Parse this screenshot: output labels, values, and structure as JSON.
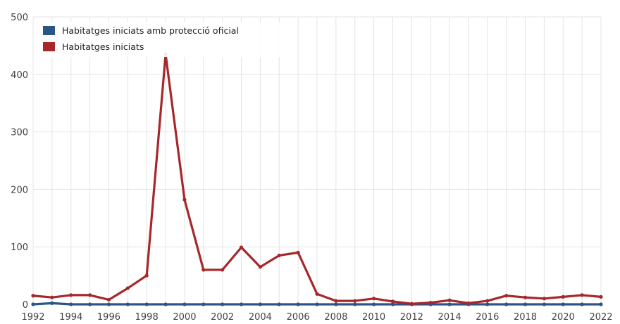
{
  "chart_data": {
    "type": "line",
    "title": "",
    "xlabel": "",
    "ylabel": "",
    "x": [
      1992,
      1993,
      1994,
      1995,
      1996,
      1997,
      1998,
      1999,
      2000,
      2001,
      2002,
      2003,
      2004,
      2005,
      2006,
      2007,
      2008,
      2009,
      2010,
      2011,
      2012,
      2013,
      2014,
      2015,
      2016,
      2017,
      2018,
      2019,
      2020,
      2021,
      2022
    ],
    "xlim": [
      1992,
      2022
    ],
    "ylim": [
      0,
      500
    ],
    "x_ticks": [
      "1992",
      "1994",
      "1996",
      "1998",
      "2000",
      "2002",
      "2004",
      "2006",
      "2008",
      "2010",
      "2012",
      "2014",
      "2016",
      "2018",
      "2020",
      "2022"
    ],
    "y_ticks": [
      "0",
      "100",
      "200",
      "300",
      "400",
      "500"
    ],
    "grid": true,
    "legend_position": "top-left",
    "series": [
      {
        "name": "Habitatges iniciats amb protecció oficial",
        "color": "#2b5487",
        "values": [
          0,
          2,
          0,
          0,
          0,
          0,
          0,
          0,
          0,
          0,
          0,
          0,
          0,
          0,
          0,
          0,
          0,
          0,
          0,
          0,
          0,
          0,
          0,
          0,
          0,
          0,
          0,
          0,
          0,
          0,
          0
        ]
      },
      {
        "name": "Habitatges iniciats",
        "color": "#a7272b",
        "values": [
          15,
          12,
          16,
          16,
          8,
          28,
          50,
          435,
          182,
          60,
          60,
          99,
          65,
          85,
          90,
          18,
          6,
          6,
          10,
          5,
          1,
          3,
          7,
          2,
          6,
          15,
          12,
          10,
          13,
          16,
          13
        ]
      }
    ]
  }
}
